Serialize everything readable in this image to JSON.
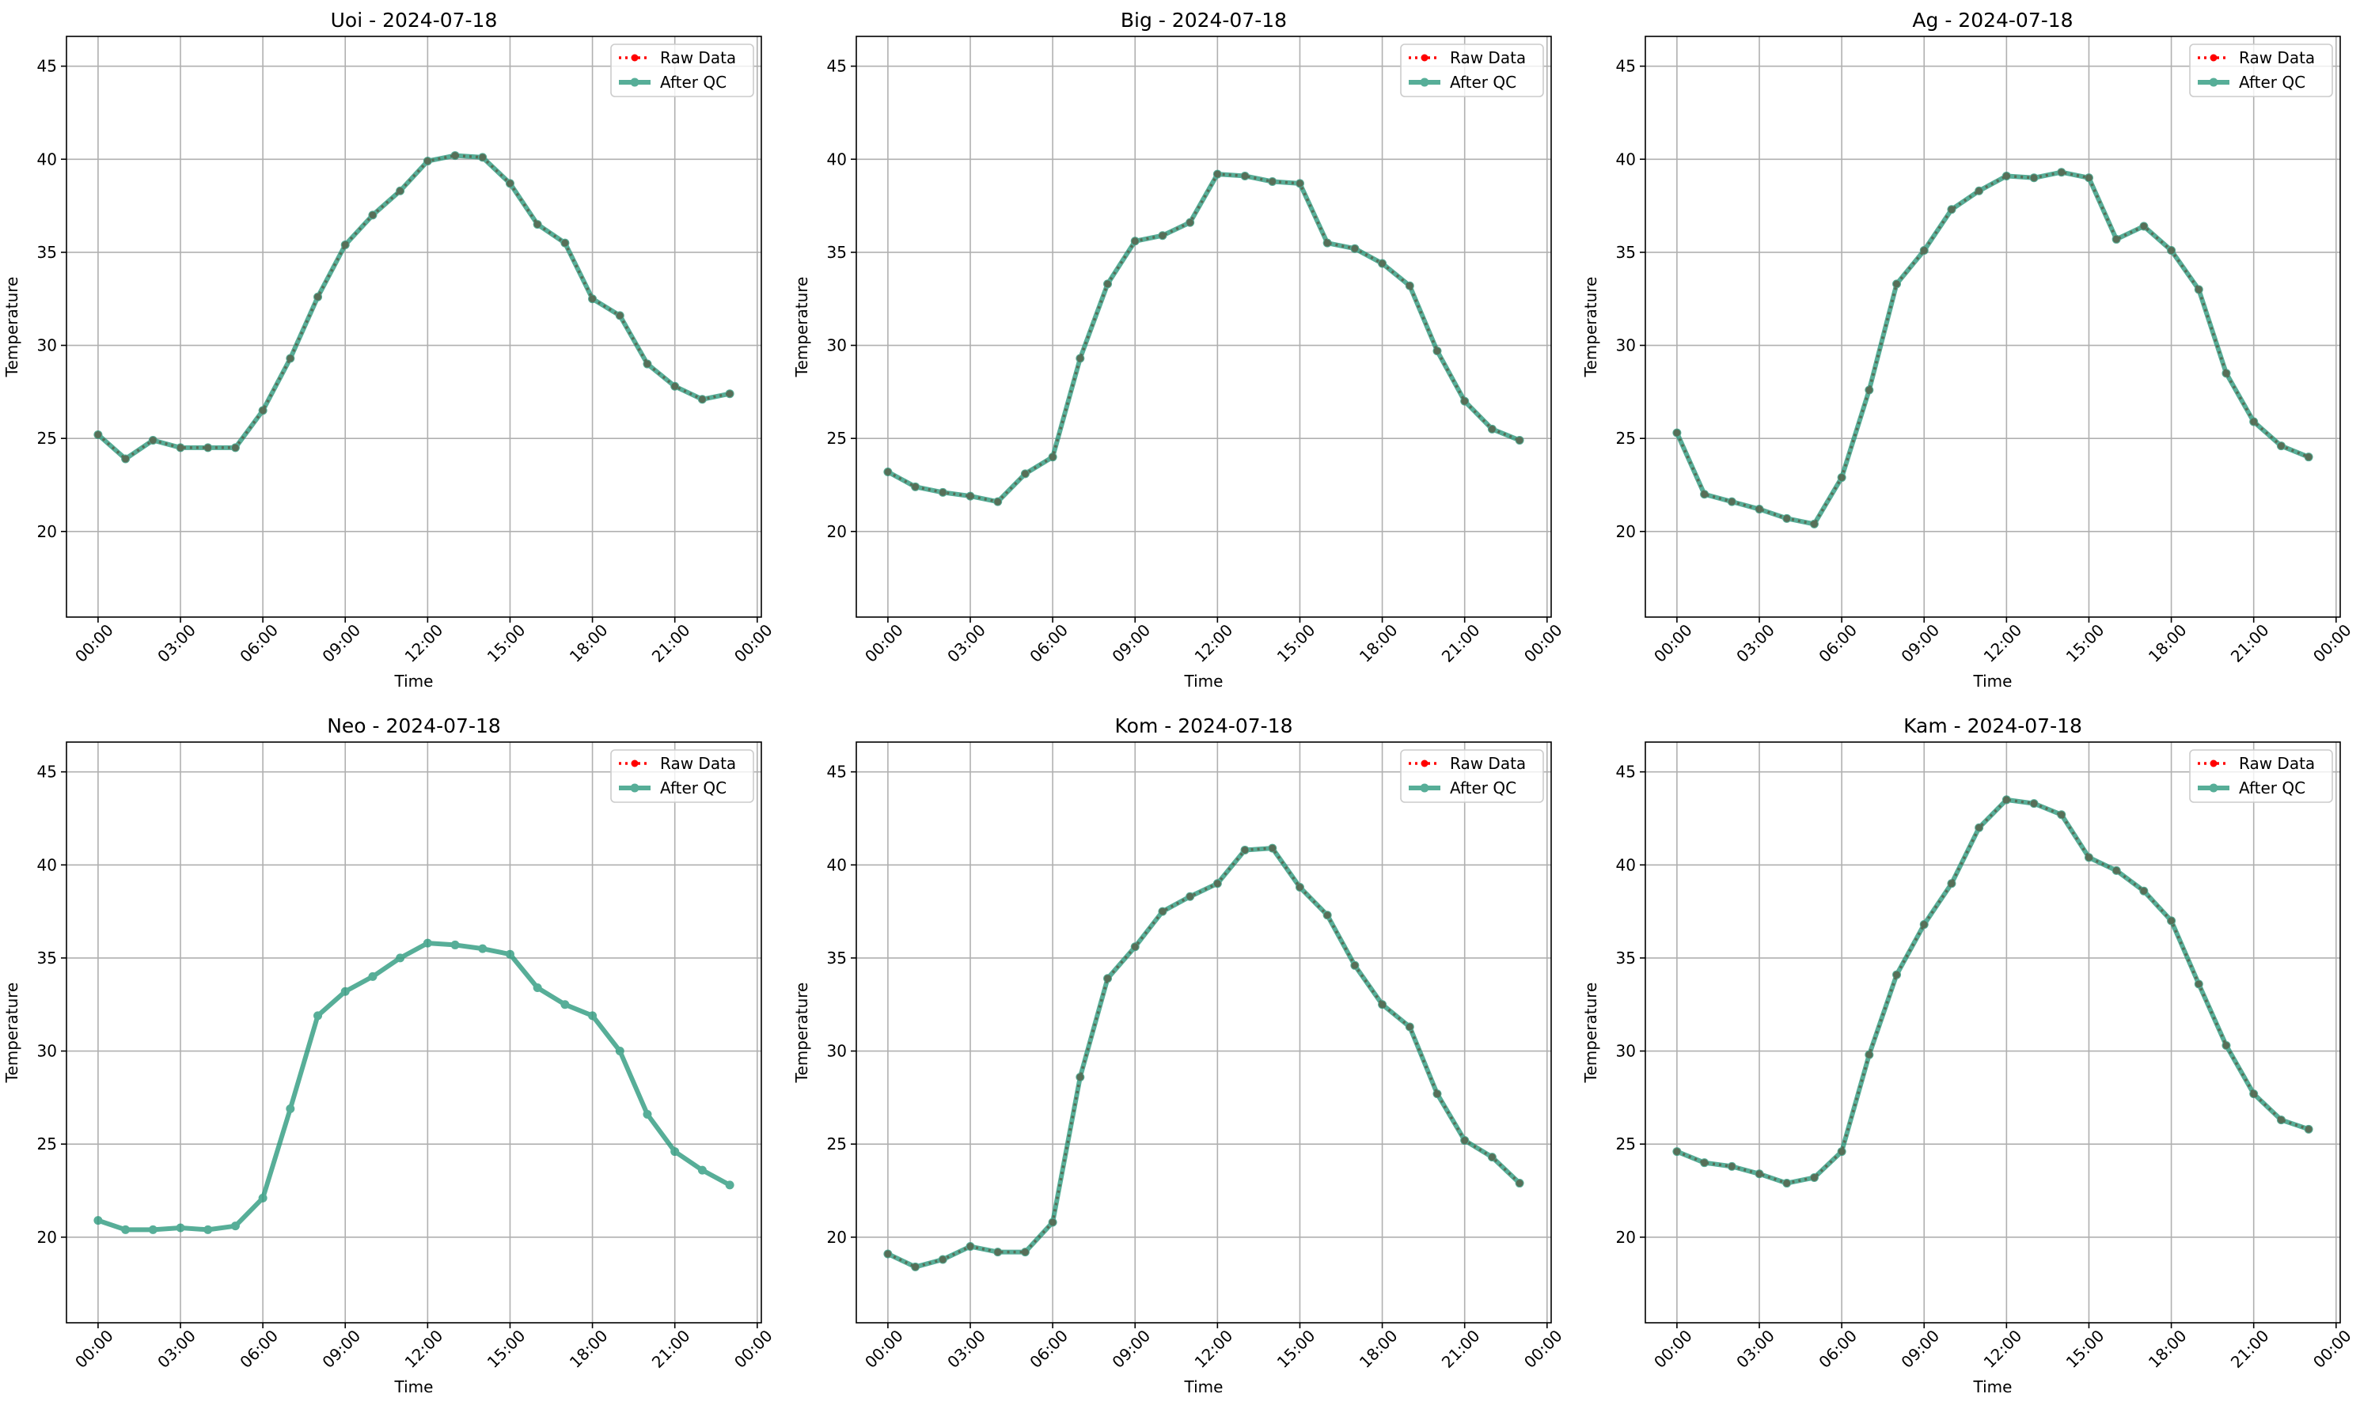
{
  "chart_data": [
    {
      "type": "line",
      "title": "Uoi - 2024-07-18",
      "xlabel": "Time",
      "ylabel": "Temperature",
      "x": [
        0,
        1,
        2,
        3,
        4,
        5,
        6,
        7,
        8,
        9,
        10,
        11,
        12,
        13,
        14,
        15,
        16,
        17,
        18,
        19,
        20,
        21,
        22,
        23
      ],
      "series": [
        {
          "name": "Raw Data",
          "color": "#ff0000",
          "values": [
            25.2,
            23.9,
            24.9,
            24.5,
            24.5,
            24.5,
            26.5,
            29.3,
            32.6,
            35.4,
            37.0,
            38.3,
            39.9,
            40.2,
            40.1,
            38.7,
            36.5,
            35.5,
            32.5,
            31.6,
            29.0,
            27.8,
            27.1,
            27.4
          ]
        },
        {
          "name": "After QC",
          "color": "#1f9476",
          "values": [
            25.2,
            23.9,
            24.9,
            24.5,
            24.5,
            24.5,
            26.5,
            29.3,
            32.6,
            35.4,
            37.0,
            38.3,
            39.9,
            40.2,
            40.1,
            38.7,
            36.5,
            35.5,
            32.5,
            31.6,
            29.0,
            27.8,
            27.1,
            27.4
          ]
        }
      ],
      "xlim": [
        -1.15,
        24.15
      ],
      "ylim": [
        15.4,
        46.6
      ],
      "xticks": [
        {
          "value": 0,
          "label": "00:00"
        },
        {
          "value": 3,
          "label": "03:00"
        },
        {
          "value": 6,
          "label": "06:00"
        },
        {
          "value": 9,
          "label": "09:00"
        },
        {
          "value": 12,
          "label": "12:00"
        },
        {
          "value": 15,
          "label": "15:00"
        },
        {
          "value": 18,
          "label": "18:00"
        },
        {
          "value": 21,
          "label": "21:00"
        },
        {
          "value": 24,
          "label": "00:00"
        }
      ],
      "yticks": [
        20,
        25,
        30,
        35,
        40,
        45
      ],
      "grid": true,
      "legend": "upper right"
    },
    {
      "type": "line",
      "title": "Big - 2024-07-18",
      "xlabel": "Time",
      "ylabel": "Temperature",
      "x": [
        0,
        1,
        2,
        3,
        4,
        5,
        6,
        7,
        8,
        9,
        10,
        11,
        12,
        13,
        14,
        15,
        16,
        17,
        18,
        19,
        20,
        21,
        22,
        23
      ],
      "series": [
        {
          "name": "Raw Data",
          "color": "#ff0000",
          "values": [
            23.2,
            22.4,
            22.1,
            21.9,
            21.6,
            23.1,
            24.0,
            29.3,
            33.3,
            35.6,
            35.9,
            36.6,
            39.2,
            39.1,
            38.8,
            38.7,
            35.5,
            35.2,
            34.4,
            33.2,
            29.7,
            27.0,
            25.5,
            24.9
          ]
        },
        {
          "name": "After QC",
          "color": "#1f9476",
          "values": [
            23.2,
            22.4,
            22.1,
            21.9,
            21.6,
            23.1,
            24.0,
            29.3,
            33.3,
            35.6,
            35.9,
            36.6,
            39.2,
            39.1,
            38.8,
            38.7,
            35.5,
            35.2,
            34.4,
            33.2,
            29.7,
            27.0,
            25.5,
            24.9
          ]
        }
      ],
      "xlim": [
        -1.15,
        24.15
      ],
      "ylim": [
        15.4,
        46.6
      ],
      "xticks": [
        {
          "value": 0,
          "label": "00:00"
        },
        {
          "value": 3,
          "label": "03:00"
        },
        {
          "value": 6,
          "label": "06:00"
        },
        {
          "value": 9,
          "label": "09:00"
        },
        {
          "value": 12,
          "label": "12:00"
        },
        {
          "value": 15,
          "label": "15:00"
        },
        {
          "value": 18,
          "label": "18:00"
        },
        {
          "value": 21,
          "label": "21:00"
        },
        {
          "value": 24,
          "label": "00:00"
        }
      ],
      "yticks": [
        20,
        25,
        30,
        35,
        40,
        45
      ],
      "grid": true,
      "legend": "upper right"
    },
    {
      "type": "line",
      "title": "Ag - 2024-07-18",
      "xlabel": "Time",
      "ylabel": "Temperature",
      "x": [
        0,
        1,
        2,
        3,
        4,
        5,
        6,
        7,
        8,
        9,
        10,
        11,
        12,
        13,
        14,
        15,
        16,
        17,
        18,
        19,
        20,
        21,
        22,
        23
      ],
      "series": [
        {
          "name": "Raw Data",
          "color": "#ff0000",
          "values": [
            25.3,
            22.0,
            21.6,
            21.2,
            20.7,
            20.4,
            22.9,
            27.6,
            33.3,
            35.1,
            37.3,
            38.3,
            39.1,
            39.0,
            39.3,
            39.0,
            35.7,
            36.4,
            35.1,
            33.0,
            28.5,
            25.9,
            24.6,
            24.0
          ]
        },
        {
          "name": "After QC",
          "color": "#1f9476",
          "values": [
            25.3,
            22.0,
            21.6,
            21.2,
            20.7,
            20.4,
            22.9,
            27.6,
            33.3,
            35.1,
            37.3,
            38.3,
            39.1,
            39.0,
            39.3,
            39.0,
            35.7,
            36.4,
            35.1,
            33.0,
            28.5,
            25.9,
            24.6,
            24.0
          ]
        }
      ],
      "xlim": [
        -1.15,
        24.15
      ],
      "ylim": [
        15.4,
        46.6
      ],
      "xticks": [
        {
          "value": 0,
          "label": "00:00"
        },
        {
          "value": 3,
          "label": "03:00"
        },
        {
          "value": 6,
          "label": "06:00"
        },
        {
          "value": 9,
          "label": "09:00"
        },
        {
          "value": 12,
          "label": "12:00"
        },
        {
          "value": 15,
          "label": "15:00"
        },
        {
          "value": 18,
          "label": "18:00"
        },
        {
          "value": 21,
          "label": "21:00"
        },
        {
          "value": 24,
          "label": "00:00"
        }
      ],
      "yticks": [
        20,
        25,
        30,
        35,
        40,
        45
      ],
      "grid": true,
      "legend": "upper right"
    },
    {
      "type": "line",
      "title": "Neo - 2024-07-18",
      "xlabel": "Time",
      "ylabel": "Temperature",
      "x": [
        0,
        1,
        2,
        3,
        4,
        5,
        6,
        7,
        8,
        9,
        10,
        11,
        12,
        13,
        14,
        15,
        16,
        17,
        18,
        19,
        20,
        21,
        22,
        23
      ],
      "series": [
        {
          "name": "Raw Data",
          "color": "#ff0000",
          "values": [
            null,
            null,
            null,
            null,
            null,
            null,
            null,
            null,
            null,
            null,
            null,
            null,
            null,
            null,
            null,
            null,
            null,
            null,
            null,
            null,
            null,
            null,
            null,
            null
          ]
        },
        {
          "name": "After QC",
          "color": "#1f9476",
          "values": [
            20.9,
            20.4,
            20.4,
            20.5,
            20.4,
            20.6,
            22.1,
            26.9,
            31.9,
            33.2,
            34.0,
            35.0,
            35.8,
            35.7,
            35.5,
            35.2,
            33.4,
            32.5,
            31.9,
            30.0,
            26.6,
            24.6,
            23.6,
            22.8
          ]
        }
      ],
      "xlim": [
        -1.15,
        24.15
      ],
      "ylim": [
        15.4,
        46.6
      ],
      "xticks": [
        {
          "value": 0,
          "label": "00:00"
        },
        {
          "value": 3,
          "label": "03:00"
        },
        {
          "value": 6,
          "label": "06:00"
        },
        {
          "value": 9,
          "label": "09:00"
        },
        {
          "value": 12,
          "label": "12:00"
        },
        {
          "value": 15,
          "label": "15:00"
        },
        {
          "value": 18,
          "label": "18:00"
        },
        {
          "value": 21,
          "label": "21:00"
        },
        {
          "value": 24,
          "label": "00:00"
        }
      ],
      "yticks": [
        20,
        25,
        30,
        35,
        40,
        45
      ],
      "grid": true,
      "legend": "upper right"
    },
    {
      "type": "line",
      "title": "Kom - 2024-07-18",
      "xlabel": "Time",
      "ylabel": "Temperature",
      "x": [
        0,
        1,
        2,
        3,
        4,
        5,
        6,
        7,
        8,
        9,
        10,
        11,
        12,
        13,
        14,
        15,
        16,
        17,
        18,
        19,
        20,
        21,
        22,
        23
      ],
      "series": [
        {
          "name": "Raw Data",
          "color": "#ff0000",
          "values": [
            19.1,
            18.4,
            18.8,
            19.5,
            19.2,
            19.2,
            20.8,
            28.6,
            33.9,
            35.6,
            37.5,
            38.3,
            39.0,
            40.8,
            40.9,
            38.8,
            37.3,
            34.6,
            32.5,
            31.3,
            27.7,
            25.2,
            24.3,
            22.9
          ]
        },
        {
          "name": "After QC",
          "color": "#1f9476",
          "values": [
            19.1,
            18.4,
            18.8,
            19.5,
            19.2,
            19.2,
            20.8,
            28.6,
            33.9,
            35.6,
            37.5,
            38.3,
            39.0,
            40.8,
            40.9,
            38.8,
            37.3,
            34.6,
            32.5,
            31.3,
            27.7,
            25.2,
            24.3,
            22.9
          ]
        }
      ],
      "xlim": [
        -1.15,
        24.15
      ],
      "ylim": [
        15.4,
        46.6
      ],
      "xticks": [
        {
          "value": 0,
          "label": "00:00"
        },
        {
          "value": 3,
          "label": "03:00"
        },
        {
          "value": 6,
          "label": "06:00"
        },
        {
          "value": 9,
          "label": "09:00"
        },
        {
          "value": 12,
          "label": "12:00"
        },
        {
          "value": 15,
          "label": "15:00"
        },
        {
          "value": 18,
          "label": "18:00"
        },
        {
          "value": 21,
          "label": "21:00"
        },
        {
          "value": 24,
          "label": "00:00"
        }
      ],
      "yticks": [
        20,
        25,
        30,
        35,
        40,
        45
      ],
      "grid": true,
      "legend": "upper right"
    },
    {
      "type": "line",
      "title": "Kam - 2024-07-18",
      "xlabel": "Time",
      "ylabel": "Temperature",
      "x": [
        0,
        1,
        2,
        3,
        4,
        5,
        6,
        7,
        8,
        9,
        10,
        11,
        12,
        13,
        14,
        15,
        16,
        17,
        18,
        19,
        20,
        21,
        22,
        23
      ],
      "series": [
        {
          "name": "Raw Data",
          "color": "#ff0000",
          "values": [
            24.6,
            24.0,
            23.8,
            23.4,
            22.9,
            23.2,
            24.6,
            29.8,
            34.1,
            36.8,
            39.0,
            42.0,
            43.5,
            43.3,
            42.7,
            40.4,
            39.7,
            38.6,
            37.0,
            33.6,
            30.3,
            27.7,
            26.3,
            25.8
          ]
        },
        {
          "name": "After QC",
          "color": "#1f9476",
          "values": [
            24.6,
            24.0,
            23.8,
            23.4,
            22.9,
            23.2,
            24.6,
            29.8,
            34.1,
            36.8,
            39.0,
            42.0,
            43.5,
            43.3,
            42.7,
            40.4,
            39.7,
            38.6,
            37.0,
            33.6,
            30.3,
            27.7,
            26.3,
            25.8
          ]
        }
      ],
      "xlim": [
        -1.15,
        24.15
      ],
      "ylim": [
        15.4,
        46.6
      ],
      "xticks": [
        {
          "value": 0,
          "label": "00:00"
        },
        {
          "value": 3,
          "label": "03:00"
        },
        {
          "value": 6,
          "label": "06:00"
        },
        {
          "value": 9,
          "label": "09:00"
        },
        {
          "value": 12,
          "label": "12:00"
        },
        {
          "value": 15,
          "label": "15:00"
        },
        {
          "value": 18,
          "label": "18:00"
        },
        {
          "value": 21,
          "label": "21:00"
        },
        {
          "value": 24,
          "label": "00:00"
        }
      ],
      "yticks": [
        20,
        25,
        30,
        35,
        40,
        45
      ],
      "grid": true,
      "legend": "upper right"
    }
  ]
}
